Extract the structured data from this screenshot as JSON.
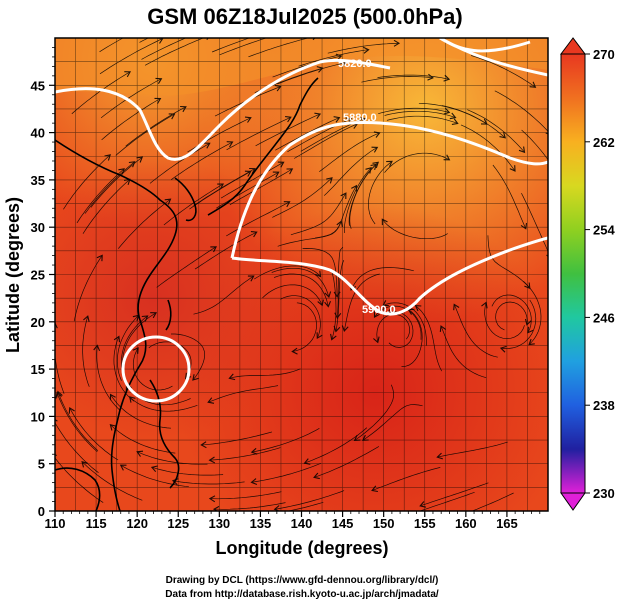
{
  "chart_data": {
    "type": "heatmap",
    "title": "GSM 06Z18Jul2025 (500.0hPa)",
    "xlabel": "Longitude (degrees)",
    "ylabel": "Latitude  (degrees)",
    "xlim": [
      110,
      170
    ],
    "ylim": [
      0,
      50
    ],
    "xticks": [
      110,
      115,
      120,
      125,
      130,
      135,
      140,
      145,
      150,
      155,
      160,
      165
    ],
    "yticks": [
      0,
      5,
      10,
      15,
      20,
      25,
      30,
      35,
      40,
      45
    ],
    "colorbar": {
      "ticks": [
        230,
        238,
        246,
        254,
        262,
        270
      ],
      "range": [
        230,
        270
      ],
      "colors": [
        "#e020d8",
        "#2020a0",
        "#2060e0",
        "#20a0e0",
        "#20c8a0",
        "#40c040",
        "#90d020",
        "#d8d820",
        "#f8b020",
        "#f07020",
        "#e83820"
      ]
    },
    "contours": [
      {
        "value": 5820,
        "label": "5820.0"
      },
      {
        "value": 5880,
        "label": "5880.0"
      },
      {
        "value": 5900,
        "label": "5900.0"
      }
    ],
    "contour_label_5820": "5820.0",
    "contour_label_5880": "5880.0",
    "contour_label_5900": "5900.0",
    "field_colors": {
      "deep": "#d82818",
      "mid": "#e84a1c",
      "warm": "#f07a20",
      "light": "#f8b030",
      "grid": "#000000"
    }
  },
  "footer": {
    "line1": "Drawing by DCL (https://www.gfd-dennou.org/library/dcl/)",
    "line2": "Data from http://database.rish.kyoto-u.ac.jp/arch/jmadata/"
  }
}
